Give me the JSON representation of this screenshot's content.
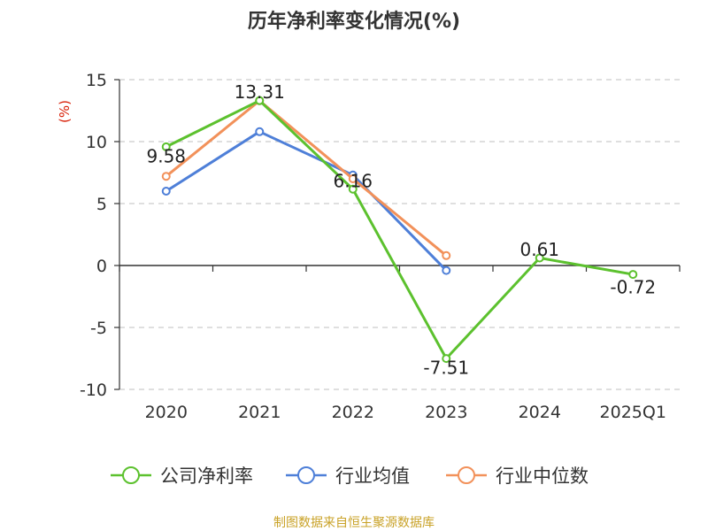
{
  "chart_data": {
    "type": "line",
    "title": "历年净利率变化情况(%)",
    "ylabel": "(%)",
    "categories": [
      "2020",
      "2021",
      "2022",
      "2023",
      "2024",
      "2025Q1"
    ],
    "ylim": [
      -10,
      15
    ],
    "yticks": [
      15,
      10,
      5,
      0,
      -5,
      -10
    ],
    "grid": true,
    "legend_position": "bottom",
    "series": [
      {
        "name": "公司净利率",
        "color": "#5cc12e",
        "values": [
          9.58,
          13.31,
          6.16,
          -7.51,
          0.61,
          -0.72
        ],
        "labels": [
          "9.58",
          "13.31",
          "6.16",
          "-7.51",
          "0.61",
          "-0.72"
        ]
      },
      {
        "name": "行业均值",
        "color": "#4e7fd8",
        "values": [
          6.0,
          10.8,
          7.3,
          -0.4,
          null,
          null
        ]
      },
      {
        "name": "行业中位数",
        "color": "#f2915a",
        "values": [
          7.2,
          13.3,
          7.0,
          0.8,
          null,
          null
        ]
      }
    ]
  },
  "source": "制图数据来自恒生聚源数据库"
}
